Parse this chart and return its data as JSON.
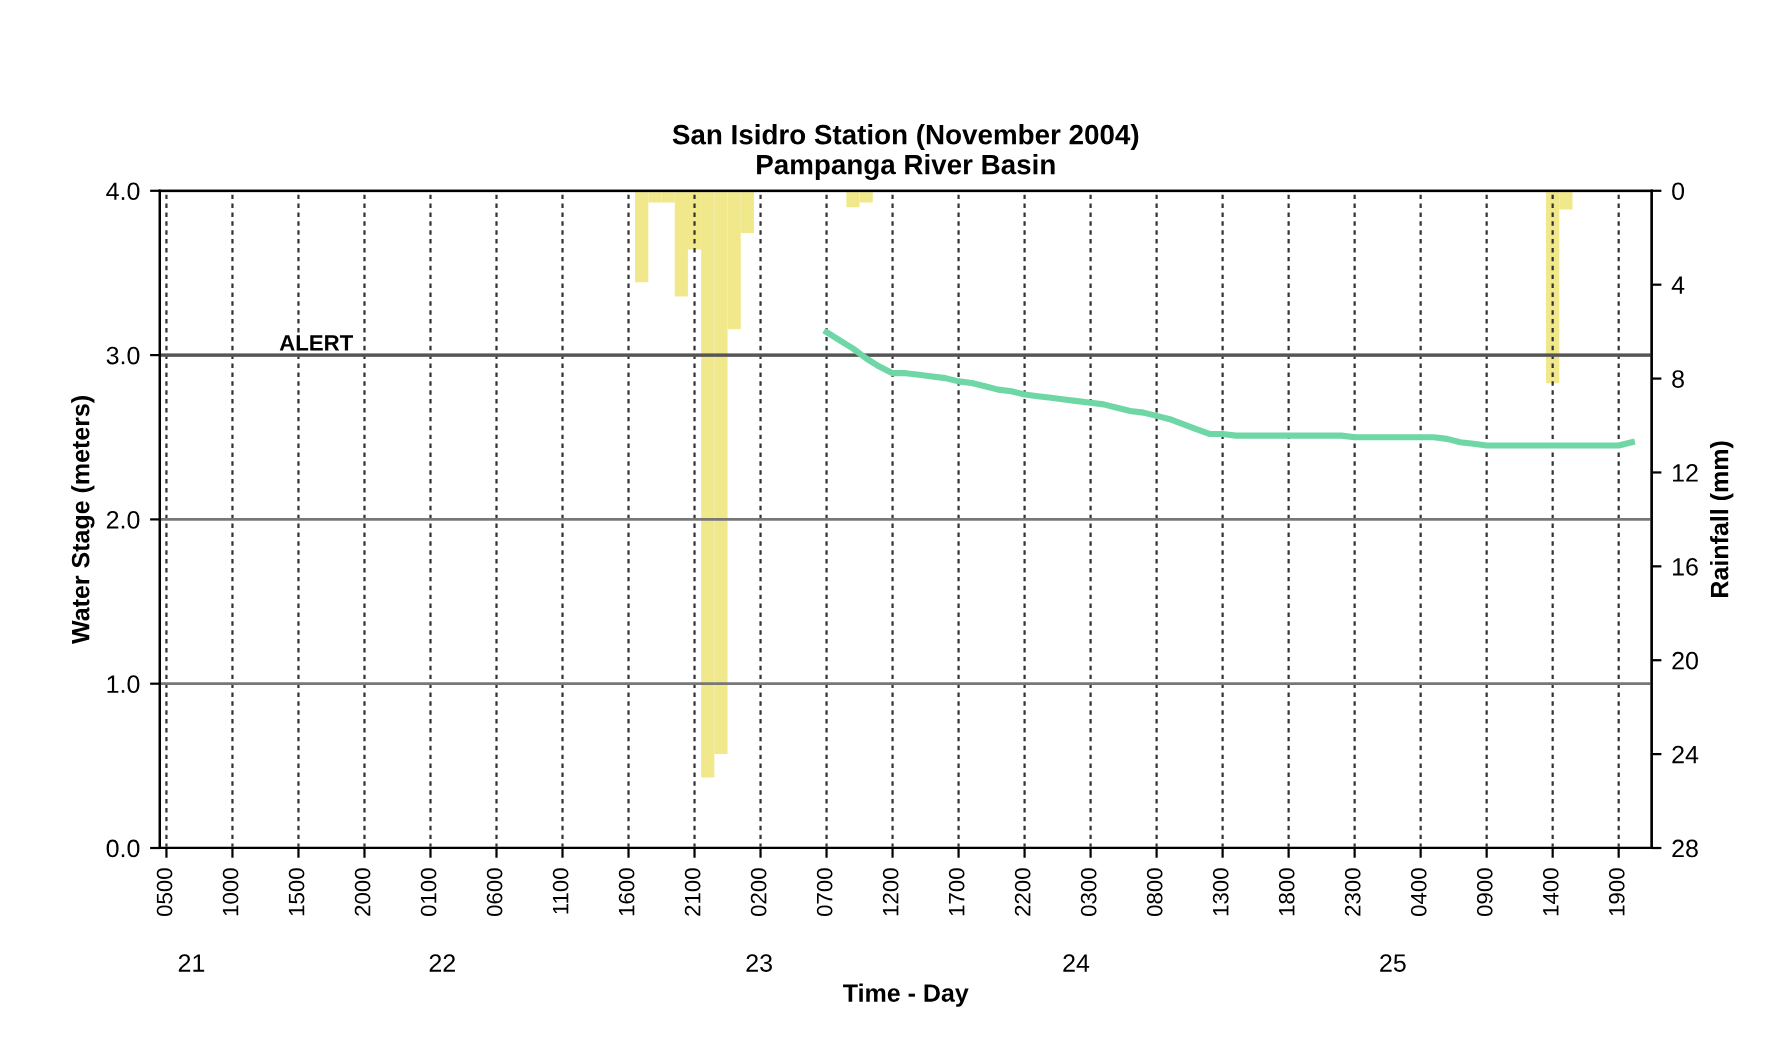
{
  "chart_data": {
    "type": "line",
    "title": "San Isidro Station (November 2004)\nPampanga River Basin",
    "xlabel": "Time - Day",
    "ylabel": "Water Stage (meters)",
    "y2label": "Rainfall (mm)",
    "categories": [
      "0500",
      null,
      null,
      null,
      null,
      "1000",
      null,
      null,
      null,
      null,
      "1500",
      null,
      null,
      null,
      null,
      "2000",
      null,
      null,
      null,
      null,
      "0100",
      null,
      null,
      null,
      null,
      "0600",
      null,
      null,
      null,
      null,
      "1100",
      null,
      null,
      null,
      null,
      "1600",
      null,
      null,
      null,
      null,
      "2100",
      null,
      null,
      null,
      null,
      "0200",
      null,
      null,
      null,
      null,
      "0700",
      null,
      null,
      null,
      null,
      "1200",
      null,
      null,
      null,
      null,
      "1700",
      null,
      null,
      null,
      null,
      "2200",
      null,
      null,
      null,
      null,
      "0300",
      null,
      null,
      null,
      null,
      "0800",
      null,
      null,
      null,
      null,
      "1300",
      null,
      null,
      null,
      null,
      "1800",
      null,
      null,
      null,
      null,
      "2300",
      null,
      null,
      null,
      null,
      "0400",
      null,
      null,
      null,
      null,
      "0900",
      null,
      null,
      null,
      null,
      "1400",
      null,
      null,
      null,
      null,
      "1900",
      null,
      null
    ],
    "ylim": [
      0,
      4
    ],
    "yticks": [
      {
        "value": 0,
        "label": "0.0"
      },
      {
        "value": 1,
        "label": "1.0"
      },
      {
        "value": 2,
        "label": "2.0"
      },
      {
        "value": 3,
        "label": "3.0"
      },
      {
        "value": 4,
        "label": "4.0"
      }
    ],
    "y2lim": [
      28,
      0
    ],
    "y2ticks": [
      0,
      4,
      8,
      12,
      16,
      20,
      24,
      28
    ],
    "grid": true,
    "series": [
      {
        "color": "#6fd6a6",
        "values": [
          null,
          null,
          null,
          null,
          null,
          null,
          null,
          null,
          null,
          null,
          null,
          null,
          null,
          null,
          null,
          null,
          null,
          null,
          null,
          null,
          null,
          null,
          null,
          null,
          null,
          null,
          null,
          null,
          null,
          null,
          null,
          null,
          null,
          null,
          null,
          null,
          null,
          null,
          null,
          null,
          null,
          null,
          null,
          null,
          null,
          null,
          null,
          null,
          null,
          null,
          3.14,
          3.09,
          3.04,
          2.98,
          2.93,
          2.89,
          2.89,
          2.88,
          2.87,
          2.86,
          2.84,
          2.83,
          2.81,
          2.79,
          2.78,
          2.76,
          2.75,
          2.74,
          2.73,
          2.72,
          2.71,
          2.7,
          2.68,
          2.66,
          2.65,
          2.63,
          2.61,
          2.58,
          2.55,
          2.52,
          2.52,
          2.51,
          2.51,
          2.51,
          2.51,
          2.51,
          2.51,
          2.51,
          2.51,
          2.51,
          2.5,
          2.5,
          2.5,
          2.5,
          2.5,
          2.5,
          2.5,
          2.49,
          2.47,
          2.46,
          2.45,
          2.45,
          2.45,
          2.45,
          2.45,
          2.45,
          2.45,
          2.45,
          2.45,
          2.45,
          2.45,
          2.47,
          null
        ]
      },
      {
        "type": "bar",
        "axis": "y2",
        "color": "#f0e88a",
        "values": [
          null,
          null,
          null,
          null,
          null,
          null,
          null,
          null,
          null,
          null,
          null,
          null,
          null,
          null,
          null,
          null,
          null,
          null,
          null,
          null,
          null,
          null,
          null,
          null,
          null,
          null,
          null,
          null,
          null,
          null,
          null,
          null,
          null,
          null,
          null,
          null,
          3.9,
          0.5,
          0.5,
          4.5,
          2.5,
          25,
          24,
          5.9,
          1.8,
          null,
          null,
          null,
          null,
          null,
          null,
          null,
          0.7,
          0.5,
          null,
          null,
          null,
          null,
          null,
          null,
          null,
          null,
          null,
          null,
          null,
          null,
          null,
          null,
          null,
          null,
          null,
          null,
          null,
          null,
          null,
          null,
          null,
          null,
          null,
          null,
          null,
          null,
          null,
          null,
          null,
          null,
          null,
          null,
          null,
          null,
          null,
          null,
          null,
          null,
          null,
          null,
          null,
          null,
          null,
          null,
          null,
          null,
          null,
          null,
          null,
          8.2,
          0.8,
          null,
          null,
          null,
          null,
          null,
          null
        ]
      }
    ],
    "ref_lines": [
      {
        "axis": "y",
        "value": 3.0,
        "label": "ALERT",
        "color": "#555555"
      }
    ],
    "annotations": [
      "21",
      "22",
      "23",
      "24",
      "25"
    ]
  }
}
